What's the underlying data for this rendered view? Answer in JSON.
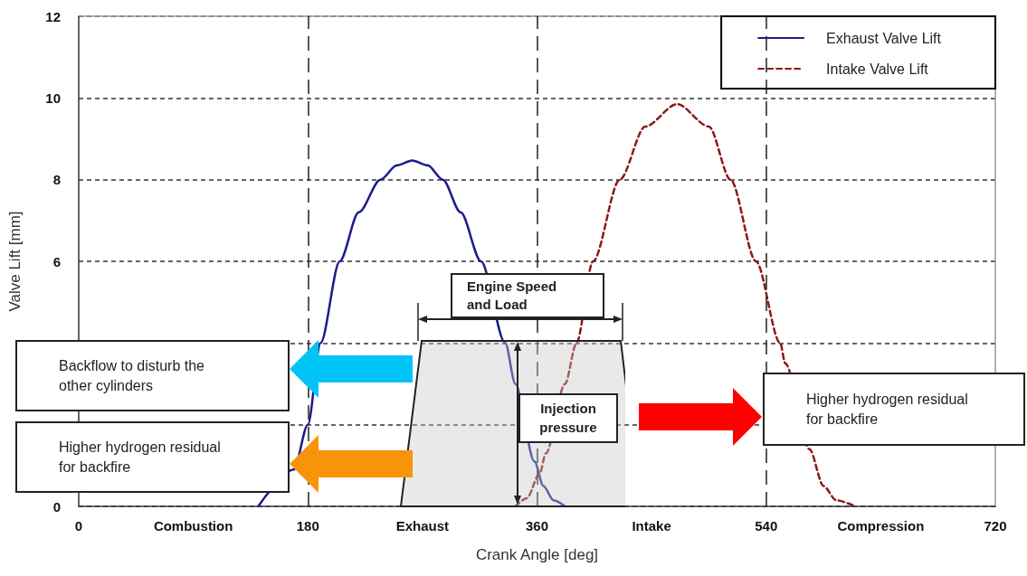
{
  "chart_data": {
    "type": "line",
    "xlabel": "Crank Angle [deg]",
    "ylabel": "Valve Lift [mm]",
    "xlim": [
      0,
      720
    ],
    "xticks": [
      0,
      {
        "value": 90,
        "label": "Combustion"
      },
      180,
      {
        "value": 270,
        "label": "Exhaust"
      },
      360,
      {
        "value": 450,
        "label": "Intake"
      },
      540,
      {
        "value": 630,
        "label": "Compression"
      },
      720
    ],
    "ylim": [
      0,
      12
    ],
    "yticks": [
      0,
      {
        "value": 2,
        "label": null
      },
      {
        "value": 4,
        "label": null
      },
      6,
      8,
      10,
      12
    ],
    "grid": "y",
    "legend": "top right",
    "series": [
      {
        "name": "Exhaust Valve Lift",
        "color": "#1c1c8c",
        "line_style": "solid",
        "x": [
          141,
          169,
          180,
          190,
          205,
          220,
          237,
          250,
          262,
          274,
          286,
          300,
          316,
          335,
          343,
          358,
          365,
          373,
          382
        ],
        "values": [
          0,
          0.9,
          2.0,
          4.0,
          6.0,
          7.2,
          8.0,
          8.35,
          8.47,
          8.35,
          8.0,
          7.2,
          6.0,
          4.0,
          3.0,
          1.1,
          0.5,
          0.15,
          0
        ]
      },
      {
        "name": "Intake Valve Lift",
        "color": "#8c1a1a",
        "line_style": "dashed",
        "x": [
          343,
          352,
          362,
          367,
          382,
          391,
          404,
          425,
          445,
          470,
          495,
          512,
          532,
          551,
          555,
          574,
          585,
          595,
          610
        ],
        "values": [
          0,
          0.2,
          0.8,
          1.3,
          3.0,
          4.0,
          6.0,
          8.0,
          9.3,
          9.85,
          9.3,
          8.0,
          6.0,
          4.0,
          3.5,
          1.4,
          0.5,
          0.15,
          0
        ]
      }
    ],
    "ref_lines": [
      {
        "axis": "x",
        "value": 180,
        "color": "#222222",
        "line_style": "dashed"
      },
      {
        "axis": "x",
        "value": 360,
        "color": "#222222",
        "line_style": "dashed"
      },
      {
        "axis": "x",
        "value": 540,
        "color": "#222222",
        "line_style": "dashed"
      }
    ],
    "annotations": [
      "Engine Speed and Load",
      "Injection pressure",
      "Backflow to disturb the other cylinders",
      "Higher hydrogen residual for backfire",
      "Higher hydrogen residual for backfire"
    ]
  }
}
